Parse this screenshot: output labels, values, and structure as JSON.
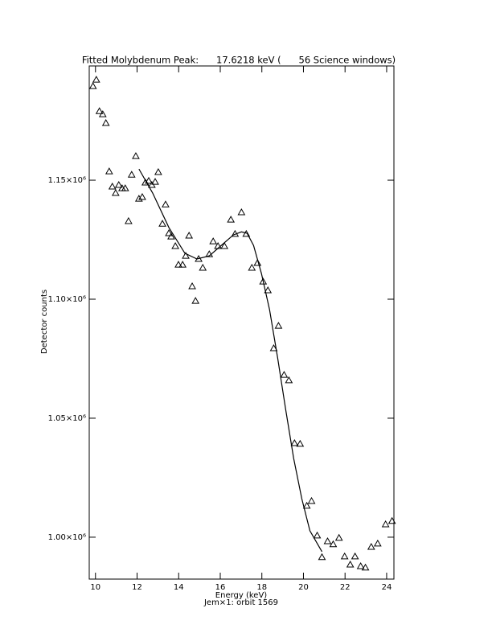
{
  "chart_data": {
    "type": "scatter",
    "title": "Fitted Molybdenum Peak:      17.6218 keV (      56 Science windows)",
    "xlabel": "Energy (keV)",
    "subtitle": "Jem×1: orbit 1569",
    "ylabel": "Detector counts",
    "xlim": [
      9.7,
      24.35
    ],
    "ylim": [
      982400,
      1198000
    ],
    "xticks": [
      10,
      12,
      14,
      16,
      18,
      20,
      22,
      24
    ],
    "yticks": [
      {
        "value": 1000000,
        "label": "1.00×10⁶"
      },
      {
        "value": 1050000,
        "label": "1.05×10⁶"
      },
      {
        "value": 1100000,
        "label": "1.10×10⁶"
      },
      {
        "value": 1150000,
        "label": "1.15×10⁶"
      }
    ],
    "color": "#000000",
    "series": [
      {
        "type": "scatter",
        "marker": "triangle",
        "x": [
          9.88,
          10.04,
          10.19,
          10.35,
          10.5,
          10.66,
          10.81,
          10.97,
          11.12,
          11.28,
          11.43,
          11.59,
          11.74,
          11.94,
          12.09,
          12.25,
          12.4,
          12.56,
          12.71,
          12.87,
          13.02,
          13.22,
          13.37,
          13.53,
          13.64,
          13.84,
          13.99,
          14.19,
          14.34,
          14.5,
          14.65,
          14.81,
          14.96,
          15.16,
          15.47,
          15.66,
          15.89,
          16.2,
          16.51,
          16.71,
          17.02,
          17.25,
          17.52,
          17.79,
          18.06,
          18.29,
          18.57,
          18.8,
          19.07,
          19.3,
          19.57,
          19.84,
          20.16,
          20.39,
          20.66,
          20.89,
          21.16,
          21.43,
          21.71,
          21.98,
          22.25,
          22.48,
          22.75,
          22.98,
          23.26,
          23.57,
          23.95,
          24.26
        ],
        "values": [
          1189500,
          1192200,
          1179000,
          1177700,
          1174000,
          1153700,
          1147300,
          1144600,
          1148000,
          1146600,
          1146600,
          1132800,
          1152300,
          1160100,
          1142200,
          1142900,
          1149000,
          1149700,
          1148000,
          1149300,
          1153400,
          1131700,
          1139800,
          1127700,
          1126300,
          1122300,
          1114500,
          1114500,
          1118200,
          1126700,
          1105400,
          1099300,
          1116900,
          1113200,
          1118900,
          1124300,
          1122300,
          1122300,
          1133400,
          1127400,
          1136500,
          1127400,
          1113200,
          1115200,
          1107400,
          1103700,
          1079400,
          1088800,
          1068200,
          1065900,
          1039500,
          1039200,
          1013200,
          1015200,
          1000700,
          991600,
          998300,
          997000,
          999700,
          991900,
          988500,
          991900,
          987800,
          987200,
          995900,
          997300,
          1005400,
          1006800
        ]
      },
      {
        "type": "line",
        "x": [
          12.09,
          12.75,
          13.53,
          14.3,
          14.88,
          15.47,
          16.05,
          16.63,
          17.02,
          17.29,
          17.6,
          17.98,
          18.37,
          18.76,
          19.15,
          19.53,
          19.92,
          20.31,
          20.89
        ],
        "values": [
          1154700,
          1144600,
          1130100,
          1119300,
          1116900,
          1118200,
          1122600,
          1127000,
          1128300,
          1127700,
          1122600,
          1110800,
          1095600,
          1075300,
          1053400,
          1033100,
          1016200,
          1002700,
          993900
        ]
      }
    ]
  }
}
